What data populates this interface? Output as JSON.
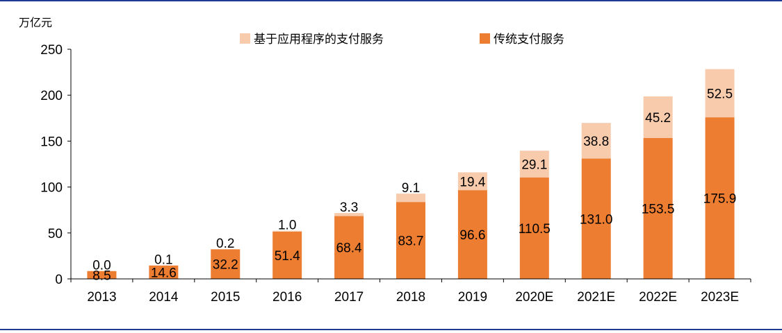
{
  "chart_data": {
    "type": "bar",
    "stacked": true,
    "unit_label": "万亿元",
    "categories": [
      "2013",
      "2014",
      "2015",
      "2016",
      "2017",
      "2018",
      "2019",
      "2020E",
      "2021E",
      "2022E",
      "2023E"
    ],
    "series": [
      {
        "name": "传统支付服务",
        "color": "#ED7D31",
        "values": [
          8.5,
          14.6,
          32.2,
          51.4,
          68.4,
          83.7,
          96.6,
          110.5,
          131.0,
          153.5,
          175.9
        ],
        "labels": [
          "8.5",
          "14.6",
          "32.2",
          "51.4",
          "68.4",
          "83.7",
          "96.6",
          "110.5",
          "131.0",
          "153.5",
          "175.9"
        ]
      },
      {
        "name": "基于应用程序的支付服务",
        "color": "#F8CBAD",
        "values": [
          0.0,
          0.1,
          0.2,
          1.0,
          3.3,
          9.1,
          19.4,
          29.1,
          38.8,
          45.2,
          52.5
        ],
        "labels": [
          "0.0",
          "0.1",
          "0.2",
          "1.0",
          "3.3",
          "9.1",
          "19.4",
          "29.1",
          "38.8",
          "45.2",
          "52.5"
        ]
      }
    ],
    "yticks": [
      "0",
      "50",
      "100",
      "150",
      "200",
      "250"
    ],
    "ylim": [
      0,
      250
    ],
    "grid": false,
    "legend_position": "top"
  }
}
